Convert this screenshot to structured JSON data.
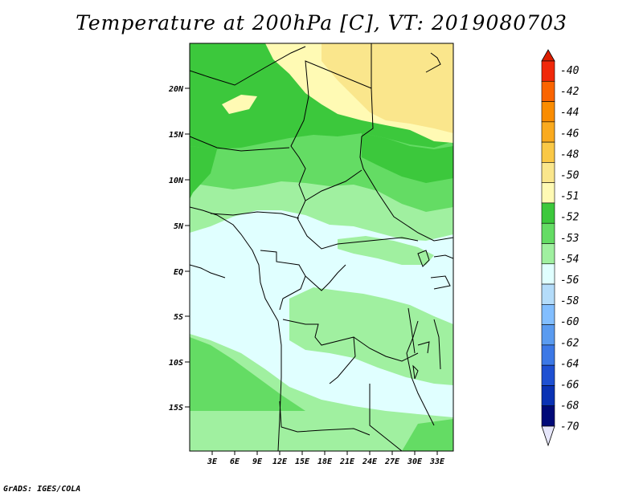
{
  "title": "Temperature at 200hPa [C], VT: 2019080703",
  "footer": "GrADS: IGES/COLA",
  "map": {
    "lat_labels": [
      "20N",
      "15N",
      "10N",
      "5N",
      "EQ",
      "5S",
      "10S",
      "15S"
    ],
    "lon_labels": [
      "3E",
      "6E",
      "9E",
      "12E",
      "15E",
      "18E",
      "21E",
      "24E",
      "27E",
      "30E",
      "33E"
    ]
  },
  "colorbar": {
    "labels": [
      "-40",
      "-42",
      "-44",
      "-46",
      "-48",
      "-50",
      "-51",
      "-52",
      "-53",
      "-54",
      "-56",
      "-58",
      "-60",
      "-62",
      "-64",
      "-66",
      "-68",
      "-70"
    ],
    "colors": [
      "#f0280a",
      "#fa6400",
      "#fa8c00",
      "#faaa1e",
      "#fac846",
      "#fae68c",
      "#fffab4",
      "#3cc83c",
      "#64dc64",
      "#a0f0a0",
      "#e0ffff",
      "#b4dcfa",
      "#82beff",
      "#5a9bf0",
      "#3c78e6",
      "#1e50d2",
      "#0a32b4",
      "#000a78"
    ],
    "top_arrow_color": "#dc1e00",
    "bottom_arrow_color": "#e6e6fa"
  }
}
